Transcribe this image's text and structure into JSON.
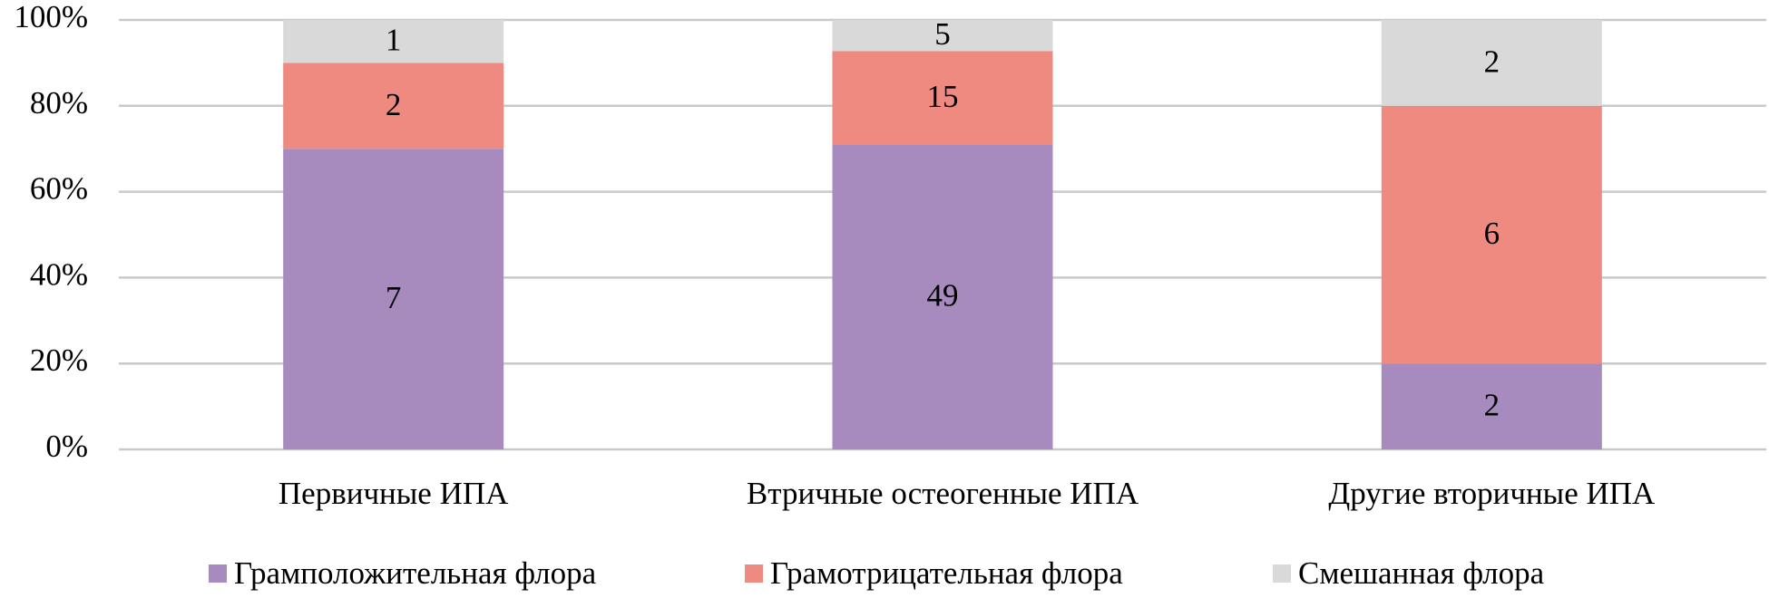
{
  "chart_data": {
    "type": "stacked_percent",
    "categories": [
      "Первичные ИПА",
      "Втричные остеогенные ИПА",
      "Другие вторичные ИПА"
    ],
    "series": [
      {
        "name": "Грамположительная флора",
        "color": "#a78bbf",
        "values": [
          7,
          49,
          2
        ]
      },
      {
        "name": "Грамотрицательная флора",
        "color": "#ee8a80",
        "values": [
          2,
          15,
          6
        ]
      },
      {
        "name": "Смешанная флора",
        "color": "#d9d9d9",
        "values": [
          1,
          5,
          2
        ]
      }
    ],
    "ylim": [
      0,
      100
    ],
    "yticks": [
      {
        "value": 0,
        "label": "0%"
      },
      {
        "value": 20,
        "label": "20%"
      },
      {
        "value": 40,
        "label": "40%"
      },
      {
        "value": 60,
        "label": "60%"
      },
      {
        "value": 80,
        "label": "80%"
      },
      {
        "value": 100,
        "label": "100%"
      }
    ],
    "grid": true
  }
}
